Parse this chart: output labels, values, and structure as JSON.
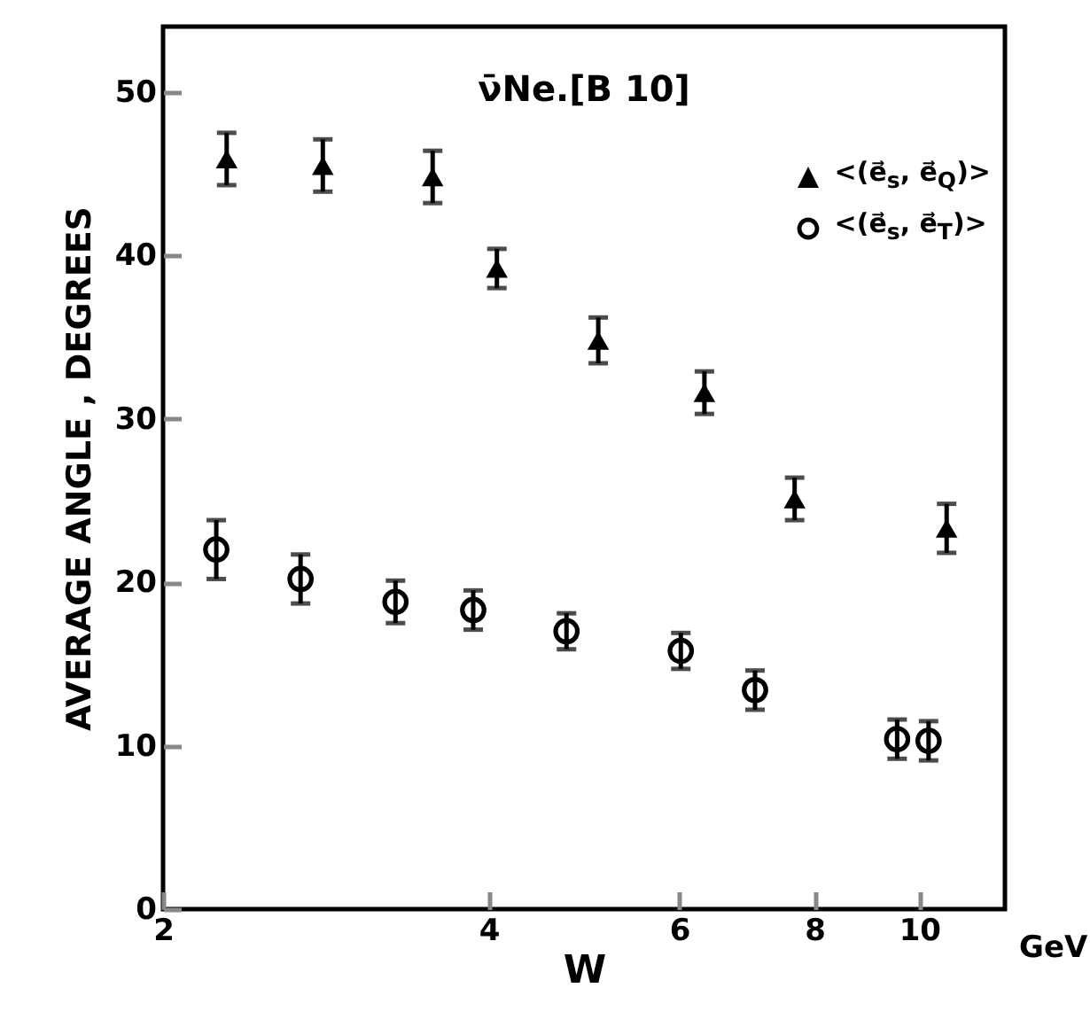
{
  "chart_data": {
    "type": "scatter",
    "title": "ν̄Ne.[B 10]",
    "xlabel": "W",
    "ylabel": "AVERAGE  ANGLE , DEGREES",
    "annotations": [
      "GeV"
    ],
    "log": "x",
    "xlim": [
      2,
      12
    ],
    "xticks": [
      2,
      4,
      6,
      8,
      10
    ],
    "ylim": [
      0,
      54
    ],
    "yticks": [
      0,
      10,
      20,
      30,
      40,
      50
    ],
    "legend": "top right",
    "series": [
      {
        "name": "<(e⃗$_{s}$, e⃗$_{Q}$)>",
        "color": "#000000",
        "marker": "triangle",
        "x": [
          2.29,
          2.81,
          3.55,
          4.07,
          5.05,
          6.33,
          7.67,
          10.6
        ],
        "values": [
          45.9,
          45.5,
          44.8,
          39.2,
          34.8,
          31.6,
          25.1,
          23.3
        ],
        "errors": [
          1.6,
          1.6,
          1.6,
          1.2,
          1.4,
          1.3,
          1.3,
          1.5
        ]
      },
      {
        "name": "<(e⃗$_{s}$, e⃗$_{T}$)>",
        "color": "#000000",
        "marker": "circle",
        "x": [
          2.24,
          2.68,
          3.28,
          3.87,
          4.72,
          6.02,
          7.05,
          9.54,
          10.2
        ],
        "values": [
          22.0,
          20.2,
          18.8,
          18.3,
          17.0,
          15.8,
          13.4,
          10.4,
          10.3
        ],
        "errors": [
          1.8,
          1.5,
          1.3,
          1.2,
          1.1,
          1.1,
          1.2,
          1.2,
          1.2
        ]
      }
    ]
  }
}
